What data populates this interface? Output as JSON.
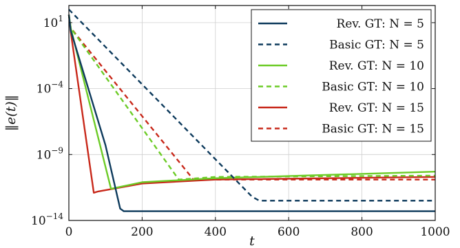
{
  "chart_data": {
    "type": "line",
    "title": "",
    "xlabel": "t",
    "ylabel": "‖e(t)‖",
    "xlim": [
      0,
      1000
    ],
    "ylim_log10": [
      -14,
      2.3
    ],
    "yscale": "log",
    "grid": true,
    "legend_placement": "top-right",
    "x_ticks": [
      0,
      200,
      400,
      600,
      800,
      1000
    ],
    "y_ticks": [
      {
        "base": "10",
        "exp": "1",
        "value": 1,
        "log10": 1
      },
      {
        "base": "10",
        "exp": "−4",
        "value": -4,
        "log10": -4
      },
      {
        "base": "10",
        "exp": "−9",
        "value": -9,
        "log10": -9
      },
      {
        "base": "10",
        "exp": "−14",
        "value": -14,
        "log10": -14
      }
    ],
    "series": [
      {
        "name": "Rev. GT: N = 5",
        "color": "#0d3a5c",
        "dash": "solid",
        "points_log10": [
          [
            0,
            1.6
          ],
          [
            5,
            0.4
          ],
          [
            100,
            -8.3
          ],
          [
            140,
            -13.1
          ],
          [
            150,
            -13.3
          ],
          [
            1000,
            -13.3
          ]
        ]
      },
      {
        "name": "Basic GT: N = 5",
        "color": "#0d3a5c",
        "dash": "dashed",
        "points_log10": [
          [
            0,
            2.0
          ],
          [
            500,
            -12.2
          ],
          [
            520,
            -12.5
          ],
          [
            1000,
            -12.5
          ]
        ]
      },
      {
        "name": "Rev. GT: N = 10",
        "color": "#6ccb26",
        "dash": "solid",
        "points_log10": [
          [
            0,
            1.6
          ],
          [
            5,
            0.6
          ],
          [
            115,
            -11.6
          ],
          [
            200,
            -11.1
          ],
          [
            400,
            -10.8
          ],
          [
            1000,
            -10.3
          ]
        ]
      },
      {
        "name": "Basic GT: N = 10",
        "color": "#6ccb26",
        "dash": "dashed",
        "points_log10": [
          [
            0,
            1.6
          ],
          [
            5,
            0.6
          ],
          [
            300,
            -10.9
          ],
          [
            400,
            -10.7
          ],
          [
            1000,
            -10.6
          ]
        ]
      },
      {
        "name": "Rev. GT: N = 15",
        "color": "#c8281a",
        "dash": "solid",
        "points_log10": [
          [
            0,
            1.6
          ],
          [
            5,
            0.3
          ],
          [
            68,
            -11.9
          ],
          [
            80,
            -11.8
          ],
          [
            200,
            -11.2
          ],
          [
            400,
            -10.9
          ],
          [
            1000,
            -10.7
          ]
        ]
      },
      {
        "name": "Basic GT: N = 15",
        "color": "#c8281a",
        "dash": "dashed",
        "points_log10": [
          [
            0,
            1.6
          ],
          [
            5,
            0.6
          ],
          [
            340,
            -10.9
          ],
          [
            400,
            -10.9
          ],
          [
            1000,
            -10.9
          ]
        ]
      }
    ]
  }
}
